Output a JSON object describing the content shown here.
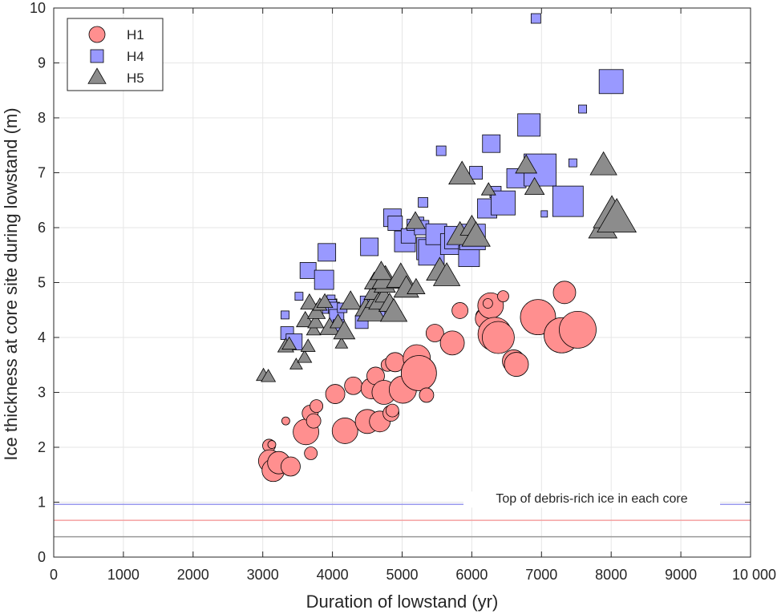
{
  "chart_data": {
    "type": "scatter",
    "title": "",
    "xlabel": "Duration of lowstand (yr)",
    "ylabel": "Ice thickness at core site during lowstand (m)",
    "xlim": [
      0,
      10000
    ],
    "ylim": [
      0,
      10
    ],
    "xticks": [
      0,
      1000,
      2000,
      3000,
      4000,
      5000,
      6000,
      7000,
      8000,
      9000,
      10000
    ],
    "xtick_labels": [
      "0",
      "1000",
      "2000",
      "3000",
      "4000",
      "5000",
      "6000",
      "7000",
      "8000",
      "9000",
      "10 000"
    ],
    "yticks": [
      0,
      1,
      2,
      3,
      4,
      5,
      6,
      7,
      8,
      9,
      10
    ],
    "ytick_labels": [
      "0",
      "1",
      "2",
      "3",
      "4",
      "5",
      "6",
      "7",
      "8",
      "9",
      "10"
    ],
    "grid": true,
    "legend_position": "top-left",
    "annotation": "Top of debris-rich ice in each core",
    "reference_lines": [
      {
        "series": "H4",
        "y": 0.96,
        "color": "#9999ee"
      },
      {
        "series": "H1",
        "y": 0.67,
        "color": "#f4a0a0"
      },
      {
        "series": "H5",
        "y": 0.37,
        "color": "#999999"
      }
    ],
    "series": [
      {
        "name": "H1",
        "marker": "circle",
        "color": "#ff8f8f",
        "points": [
          [
            3090,
            2.03,
            8
          ],
          [
            3130,
            2.05,
            5
          ],
          [
            3100,
            1.75,
            14
          ],
          [
            3150,
            1.58,
            14
          ],
          [
            3230,
            1.72,
            14
          ],
          [
            3400,
            1.65,
            12
          ],
          [
            3330,
            2.48,
            5
          ],
          [
            3620,
            2.28,
            16
          ],
          [
            3680,
            2.62,
            10
          ],
          [
            3730,
            2.48,
            9
          ],
          [
            3770,
            2.75,
            8
          ],
          [
            3690,
            1.89,
            8
          ],
          [
            4180,
            2.3,
            16
          ],
          [
            4040,
            2.97,
            12
          ],
          [
            4300,
            3.12,
            11
          ],
          [
            4500,
            2.47,
            15
          ],
          [
            4560,
            3.07,
            13
          ],
          [
            4620,
            3.3,
            11
          ],
          [
            4680,
            2.47,
            13
          ],
          [
            4740,
            3.0,
            15
          ],
          [
            4790,
            3.5,
            8
          ],
          [
            4840,
            2.62,
            10
          ],
          [
            4860,
            2.67,
            8
          ],
          [
            4900,
            3.55,
            12
          ],
          [
            5010,
            3.05,
            17
          ],
          [
            5210,
            3.62,
            17
          ],
          [
            5240,
            3.35,
            22
          ],
          [
            5350,
            2.95,
            9
          ],
          [
            5470,
            4.08,
            11
          ],
          [
            5720,
            3.9,
            15
          ],
          [
            5830,
            4.49,
            10
          ],
          [
            6160,
            4.39,
            9
          ],
          [
            6200,
            4.34,
            13
          ],
          [
            6270,
            4.58,
            16
          ],
          [
            6230,
            4.62,
            6
          ],
          [
            6330,
            4.06,
            21
          ],
          [
            6450,
            4.75,
            7
          ],
          [
            6380,
            4.0,
            20
          ],
          [
            6600,
            3.57,
            14
          ],
          [
            6640,
            3.51,
            15
          ],
          [
            6950,
            4.37,
            22
          ],
          [
            7330,
            4.82,
            14
          ],
          [
            7290,
            4.04,
            22
          ],
          [
            7520,
            4.14,
            23
          ]
        ]
      },
      {
        "name": "H4",
        "marker": "square",
        "color": "#9999ff",
        "points": [
          [
            3320,
            4.41,
            5
          ],
          [
            3350,
            4.08,
            8
          ],
          [
            3450,
            3.92,
            10
          ],
          [
            3520,
            4.75,
            5
          ],
          [
            3650,
            5.22,
            10
          ],
          [
            3880,
            5.05,
            12
          ],
          [
            3960,
            4.57,
            9
          ],
          [
            3980,
            4.7,
            5
          ],
          [
            4000,
            4.62,
            5
          ],
          [
            4020,
            4.54,
            7
          ],
          [
            4060,
            4.38,
            9
          ],
          [
            4090,
            4.22,
            7
          ],
          [
            4140,
            4.54,
            6
          ],
          [
            3920,
            5.55,
            11
          ],
          [
            4530,
            5.65,
            11
          ],
          [
            4420,
            4.28,
            8
          ],
          [
            4560,
            4.55,
            14
          ],
          [
            4660,
            4.45,
            8
          ],
          [
            4860,
            6.18,
            11
          ],
          [
            4900,
            6.08,
            9
          ],
          [
            5040,
            5.75,
            13
          ],
          [
            5090,
            5.85,
            9
          ],
          [
            5150,
            6.05,
            7
          ],
          [
            5230,
            6.09,
            7
          ],
          [
            5280,
            6.0,
            9
          ],
          [
            5370,
            5.62,
            14
          ],
          [
            5420,
            5.55,
            16
          ],
          [
            5490,
            5.88,
            13
          ],
          [
            5300,
            6.46,
            6
          ],
          [
            5560,
            7.4,
            6
          ],
          [
            5700,
            5.7,
            13
          ],
          [
            5770,
            5.82,
            14
          ],
          [
            5960,
            5.48,
            13
          ],
          [
            6010,
            5.83,
            16
          ],
          [
            6060,
            7.0,
            8
          ],
          [
            6220,
            6.35,
            12
          ],
          [
            6280,
            7.53,
            11
          ],
          [
            6340,
            6.65,
            7
          ],
          [
            6450,
            6.45,
            15
          ],
          [
            6640,
            6.9,
            12
          ],
          [
            6820,
            7.87,
            14
          ],
          [
            6980,
            7.05,
            20
          ],
          [
            7040,
            6.25,
            4
          ],
          [
            7380,
            6.48,
            19
          ],
          [
            7450,
            7.18,
            5
          ],
          [
            7590,
            8.16,
            5
          ],
          [
            8000,
            8.66,
            15
          ],
          [
            6920,
            9.81,
            6
          ]
        ]
      },
      {
        "name": "H5",
        "marker": "triangle",
        "color": "#8c8c8c",
        "points": [
          [
            3010,
            3.3,
            8
          ],
          [
            3080,
            3.28,
            8
          ],
          [
            3330,
            3.83,
            9
          ],
          [
            3380,
            3.87,
            8
          ],
          [
            3480,
            3.5,
            7
          ],
          [
            3600,
            3.63,
            8
          ],
          [
            3650,
            3.83,
            8
          ],
          [
            3610,
            4.3,
            10
          ],
          [
            3730,
            4.13,
            8
          ],
          [
            3760,
            4.27,
            9
          ],
          [
            3770,
            4.45,
            10
          ],
          [
            3670,
            4.62,
            10
          ],
          [
            3820,
            4.58,
            8
          ],
          [
            3890,
            4.64,
            9
          ],
          [
            3960,
            4.17,
            11
          ],
          [
            4080,
            4.27,
            9
          ],
          [
            4130,
            3.88,
            7
          ],
          [
            4170,
            4.1,
            12
          ],
          [
            4260,
            4.64,
            12
          ],
          [
            4480,
            4.52,
            12
          ],
          [
            4560,
            4.47,
            16
          ],
          [
            4620,
            4.67,
            12
          ],
          [
            4630,
            4.84,
            14
          ],
          [
            4660,
            4.63,
            11
          ],
          [
            4740,
            4.75,
            10
          ],
          [
            4820,
            4.6,
            12
          ],
          [
            4880,
            4.45,
            15
          ],
          [
            4600,
            5.0,
            11
          ],
          [
            4750,
            4.95,
            12
          ],
          [
            4760,
            5.05,
            15
          ],
          [
            4700,
            5.18,
            12
          ],
          [
            4980,
            5.08,
            16
          ],
          [
            5060,
            4.88,
            14
          ],
          [
            5200,
            4.9,
            10
          ],
          [
            5540,
            5.2,
            15
          ],
          [
            5640,
            5.1,
            15
          ],
          [
            5190,
            6.1,
            11
          ],
          [
            5830,
            5.85,
            15
          ],
          [
            6000,
            6.0,
            13
          ],
          [
            6060,
            5.83,
            16
          ],
          [
            6240,
            6.68,
            8
          ],
          [
            5860,
            6.95,
            15
          ],
          [
            6780,
            7.12,
            12
          ],
          [
            6900,
            6.72,
            11
          ],
          [
            7880,
            5.98,
            16
          ],
          [
            7890,
            7.12,
            15
          ],
          [
            8010,
            6.22,
            21
          ],
          [
            8080,
            6.15,
            22
          ]
        ]
      }
    ]
  }
}
